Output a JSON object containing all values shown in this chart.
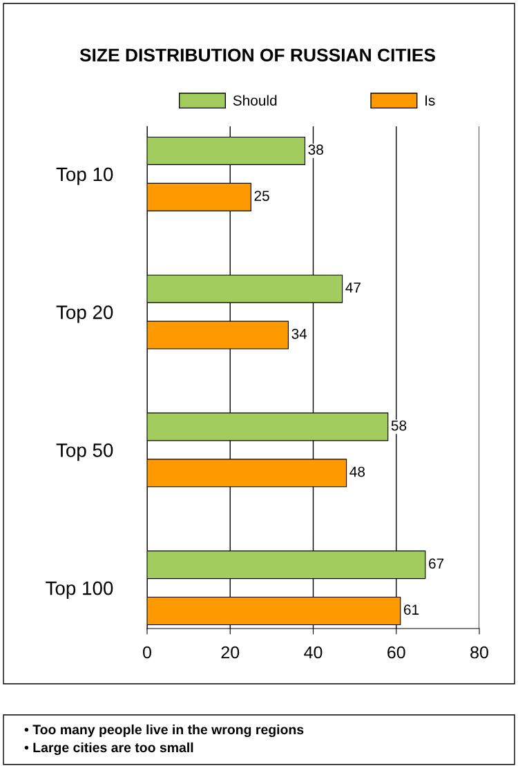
{
  "chart_data": {
    "type": "bar",
    "orientation": "horizontal",
    "title": "SIZE DISTRIBUTION OF RUSSIAN CITIES",
    "categories": [
      "Top 10",
      "Top 20",
      "Top 50",
      "Top 100"
    ],
    "series": [
      {
        "name": "Should",
        "color": "#a3cc5e",
        "values": [
          38,
          47,
          58,
          67
        ]
      },
      {
        "name": "Is",
        "color": "#ff9900",
        "values": [
          25,
          34,
          48,
          61
        ]
      }
    ],
    "xlim": [
      0,
      80
    ],
    "xticks": [
      0,
      20,
      40,
      60,
      80
    ],
    "grid": "x",
    "legend": "top",
    "data_labels": true,
    "annotations": [
      "• Too many people live in the wrong regions",
      "• Large cities are too small"
    ]
  }
}
